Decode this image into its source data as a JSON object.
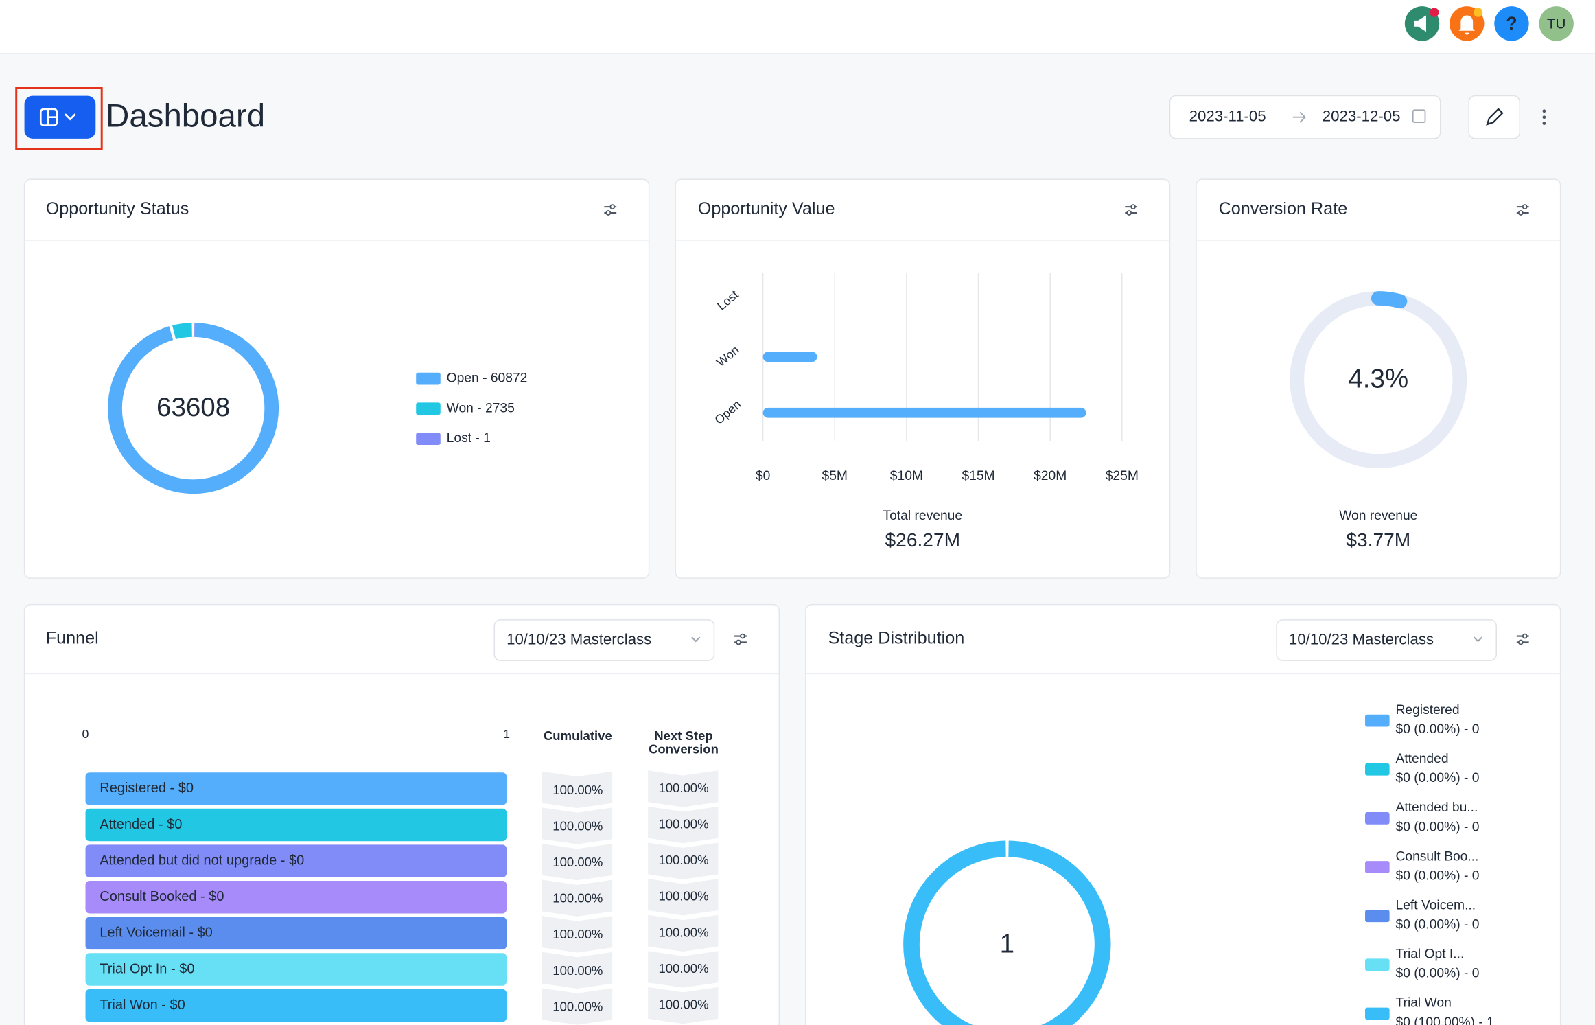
{
  "topbar": {
    "help_icon": "?",
    "avatar": "TU"
  },
  "page": {
    "title": "Dashboard",
    "date_start": "2023-11-05",
    "date_end": "2023-12-05"
  },
  "opportunity_status": {
    "type": "donut",
    "title": "Opportunity Status",
    "total": 63608,
    "segments": [
      {
        "name": "Open",
        "value": 60872,
        "color": "#54aefc",
        "legend": "Open - 60872"
      },
      {
        "name": "Won",
        "value": 2735,
        "color": "#22c7e3",
        "legend": "Won - 2735"
      },
      {
        "name": "Lost",
        "value": 1,
        "color": "#818cf8",
        "legend": "Lost - 1"
      }
    ]
  },
  "opportunity_value": {
    "type": "bar",
    "title": "Opportunity Value",
    "categories": [
      "Lost",
      "Won",
      "Open"
    ],
    "values": [
      0,
      3770000,
      22500000
    ],
    "color": "#54aefc",
    "xlim": [
      0,
      25000000
    ],
    "xticks": [
      {
        "value": 0,
        "label": "$0"
      },
      {
        "value": 5000000,
        "label": "$5M"
      },
      {
        "value": 10000000,
        "label": "$10M"
      },
      {
        "value": 15000000,
        "label": "$15M"
      },
      {
        "value": 20000000,
        "label": "$20M"
      },
      {
        "value": 25000000,
        "label": "$25M"
      }
    ],
    "grid": true,
    "total_label": "Total revenue",
    "total": "$26.27M"
  },
  "conversion_rate": {
    "type": "gauge",
    "title": "Conversion Rate",
    "value": 4.3,
    "value_label": "4.3%",
    "color": "#54aefc",
    "footer_label": "Won revenue",
    "footer_value": "$3.77M"
  },
  "funnel": {
    "title": "Funnel",
    "filter": "10/10/23 Masterclass",
    "xticks": [
      0,
      1
    ],
    "cumulative_header": "Cumulative",
    "next_step_header": [
      "Next Step",
      "Conversion"
    ],
    "stages": [
      {
        "label": "Registered - $0",
        "color": "#54aefc",
        "cumulative": "100.00%",
        "next_step": "100.00%"
      },
      {
        "label": "Attended - $0",
        "color": "#22c7e3",
        "cumulative": "100.00%",
        "next_step": "100.00%"
      },
      {
        "label": "Attended but did not upgrade - $0",
        "color": "#818cf8",
        "cumulative": "100.00%",
        "next_step": "100.00%"
      },
      {
        "label": "Consult Booked - $0",
        "color": "#a78bfa",
        "cumulative": "100.00%",
        "next_step": "100.00%"
      },
      {
        "label": "Left Voicemail - $0",
        "color": "#5b8def",
        "cumulative": "100.00%",
        "next_step": "100.00%"
      },
      {
        "label": "Trial Opt In - $0",
        "color": "#67e0f5",
        "cumulative": "100.00%",
        "next_step": "100.00%"
      },
      {
        "label": "Trial Won - $0",
        "color": "#38bdf8",
        "cumulative": "100.00%",
        "next_step": "100.00%"
      }
    ]
  },
  "stage_distribution": {
    "type": "donut",
    "title": "Stage Distribution",
    "filter": "10/10/23 Masterclass",
    "total": 1,
    "stages": [
      {
        "name": "Registered",
        "detail": "$0 (0.00%) - 0",
        "value": 0,
        "color": "#54aefc"
      },
      {
        "name": "Attended",
        "detail": "$0 (0.00%) - 0",
        "value": 0,
        "color": "#22c7e3"
      },
      {
        "name": "Attended bu...",
        "detail": "$0 (0.00%) - 0",
        "value": 0,
        "color": "#818cf8"
      },
      {
        "name": "Consult Boo...",
        "detail": "$0 (0.00%) - 0",
        "value": 0,
        "color": "#a78bfa"
      },
      {
        "name": "Left Voicem...",
        "detail": "$0 (0.00%) - 0",
        "value": 0,
        "color": "#5b8def"
      },
      {
        "name": "Trial Opt I...",
        "detail": "$0 (0.00%) - 0",
        "value": 0,
        "color": "#67e0f5"
      },
      {
        "name": "Trial Won",
        "detail": "$0 (100.00%) - 1",
        "value": 1,
        "color": "#38bdf8"
      }
    ]
  }
}
